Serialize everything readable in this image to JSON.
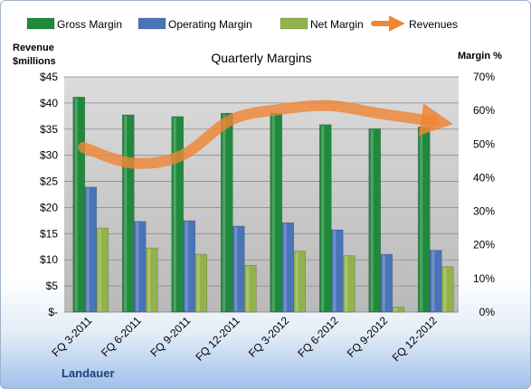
{
  "chart_data": {
    "type": "bar",
    "title": "Quarterly Margins",
    "y_left_label": [
      "Revenue",
      "$millions"
    ],
    "y_right_label": "Margin %",
    "company": "Landauer",
    "categories": [
      "FQ 3-2011",
      "FQ 6-2011",
      "FQ 9-2011",
      "FQ 12-2011",
      "FQ 3-2012",
      "FQ 6-2012",
      "FQ 9-2012",
      "FQ 12-2012"
    ],
    "y_left_ticks": [
      "$-",
      "$5",
      "$10",
      "$15",
      "$20",
      "$25",
      "$30",
      "$35",
      "$40",
      "$45"
    ],
    "y_right_ticks": [
      "0%",
      "10%",
      "20%",
      "30%",
      "40%",
      "50%",
      "60%",
      "70%"
    ],
    "y_left_range": [
      0,
      45
    ],
    "y_right_range": [
      0,
      70
    ],
    "grid": true,
    "legend_position": "top",
    "series": [
      {
        "name": "Gross Margin",
        "axis": "right",
        "color": "#1f8a3c",
        "values": [
          64,
          58.7,
          58.2,
          59.2,
          59.2,
          55.8,
          54.6,
          55.1
        ]
      },
      {
        "name": "Operating Margin",
        "axis": "right",
        "color": "#4a74b8",
        "values": [
          37.2,
          27.0,
          27.2,
          25.6,
          26.6,
          24.5,
          17.2,
          18.4
        ]
      },
      {
        "name": "Net Margin",
        "axis": "right",
        "color": "#92b34b",
        "values": [
          25.0,
          19.1,
          17.2,
          13.9,
          18.2,
          16.8,
          1.5,
          13.5
        ]
      },
      {
        "name": "Revenues",
        "axis": "left",
        "type": "line",
        "color": "#ee8636",
        "values": [
          31.5,
          28.5,
          30.0,
          36.8,
          38.8,
          39.5,
          38.0,
          36.5
        ]
      }
    ]
  }
}
